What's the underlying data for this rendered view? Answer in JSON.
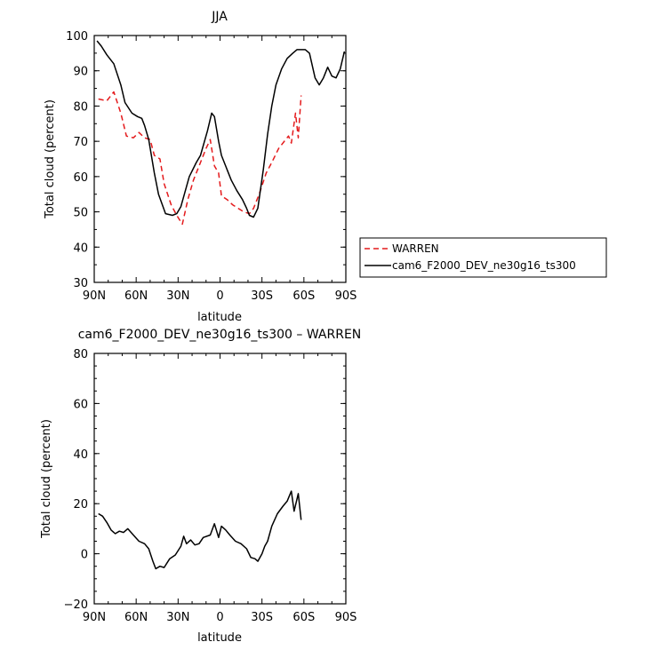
{
  "chart_data": [
    {
      "type": "line",
      "title": "JJA",
      "xlabel": "latitude",
      "ylabel": "Total cloud (percent)",
      "x_tick_labels": [
        "90N",
        "60N",
        "30N",
        "0",
        "30S",
        "60S",
        "90S"
      ],
      "x_tick_values": [
        90,
        60,
        30,
        0,
        -30,
        -60,
        -90
      ],
      "xlim": [
        90,
        -90
      ],
      "ylim": [
        30,
        100
      ],
      "y_ticks": [
        30,
        40,
        50,
        60,
        70,
        80,
        90,
        100
      ],
      "legend_position": "right",
      "series": [
        {
          "name": "WARREN",
          "color": "#e41a1c",
          "dash": "dashed",
          "points": [
            [
              87,
              82
            ],
            [
              81,
              81.5
            ],
            [
              76,
              84
            ],
            [
              71,
              78
            ],
            [
              67,
              71.5
            ],
            [
              62,
              71
            ],
            [
              58,
              72.5
            ],
            [
              54,
              71
            ],
            [
              50,
              70.5
            ],
            [
              47,
              66
            ],
            [
              43,
              65
            ],
            [
              40,
              58
            ],
            [
              35,
              52
            ],
            [
              31,
              49
            ],
            [
              27,
              46.5
            ],
            [
              23,
              53.5
            ],
            [
              19,
              59
            ],
            [
              14,
              64
            ],
            [
              10,
              68
            ],
            [
              7,
              70.5
            ],
            [
              4,
              63
            ],
            [
              1,
              61
            ],
            [
              -1,
              54.5
            ],
            [
              -5,
              53.5
            ],
            [
              -9,
              52
            ],
            [
              -13,
              51
            ],
            [
              -17,
              50
            ],
            [
              -21,
              49.5
            ],
            [
              -24,
              51
            ],
            [
              -28,
              55
            ],
            [
              -33,
              61
            ],
            [
              -37,
              64
            ],
            [
              -42,
              68
            ],
            [
              -46,
              70
            ],
            [
              -49,
              71.5
            ],
            [
              -51,
              69.5
            ],
            [
              -54,
              78
            ],
            [
              -56,
              71
            ],
            [
              -58,
              83
            ]
          ]
        },
        {
          "name": "cam6_F2000_DEV_ne30g16_ts300",
          "color": "#000000",
          "dash": "solid",
          "points": [
            [
              88,
              98.5
            ],
            [
              85,
              97
            ],
            [
              81,
              94.5
            ],
            [
              76,
              92
            ],
            [
              71,
              86
            ],
            [
              68,
              81
            ],
            [
              63,
              78
            ],
            [
              59,
              77
            ],
            [
              56,
              76.5
            ],
            [
              54,
              74.5
            ],
            [
              51,
              70.5
            ],
            [
              47,
              61
            ],
            [
              44,
              55
            ],
            [
              39,
              49.5
            ],
            [
              34,
              49
            ],
            [
              31,
              49.5
            ],
            [
              28,
              51.5
            ],
            [
              22,
              60
            ],
            [
              17,
              64
            ],
            [
              14,
              66
            ],
            [
              9,
              73
            ],
            [
              6,
              78
            ],
            [
              4,
              77
            ],
            [
              1,
              70
            ],
            [
              -1,
              66
            ],
            [
              -4,
              63
            ],
            [
              -8,
              59
            ],
            [
              -12,
              56
            ],
            [
              -16,
              53.5
            ],
            [
              -19,
              51
            ],
            [
              -21,
              49
            ],
            [
              -24,
              48.5
            ],
            [
              -27,
              51
            ],
            [
              -31,
              62
            ],
            [
              -34,
              72
            ],
            [
              -37,
              80
            ],
            [
              -40,
              86
            ],
            [
              -44,
              90.5
            ],
            [
              -48,
              93.5
            ],
            [
              -52,
              95
            ],
            [
              -55,
              96
            ],
            [
              -61,
              96
            ],
            [
              -64,
              95
            ],
            [
              -68,
              88
            ],
            [
              -71,
              86
            ],
            [
              -74,
              88
            ],
            [
              -77,
              91
            ],
            [
              -80,
              88.5
            ],
            [
              -83,
              88
            ],
            [
              -86,
              90.5
            ],
            [
              -89,
              95.5
            ]
          ]
        }
      ]
    },
    {
      "type": "line",
      "title": "cam6_F2000_DEV_ne30g16_ts300 – WARREN",
      "xlabel": "latitude",
      "ylabel": "Total cloud (percent)",
      "x_tick_labels": [
        "90N",
        "60N",
        "30N",
        "0",
        "30S",
        "60S",
        "90S"
      ],
      "x_tick_values": [
        90,
        60,
        30,
        0,
        -30,
        -60,
        -90
      ],
      "xlim": [
        90,
        -90
      ],
      "ylim": [
        -20,
        80
      ],
      "y_ticks": [
        -20,
        0,
        20,
        40,
        60,
        80
      ],
      "series": [
        {
          "color": "#000000",
          "dash": "solid",
          "points": [
            [
              87,
              16
            ],
            [
              84,
              15
            ],
            [
              81,
              12.5
            ],
            [
              78,
              9.5
            ],
            [
              75,
              8
            ],
            [
              72,
              9
            ],
            [
              69,
              8.5
            ],
            [
              66,
              10
            ],
            [
              62,
              7.5
            ],
            [
              58,
              5
            ],
            [
              54,
              4
            ],
            [
              51,
              2
            ],
            [
              48,
              -3
            ],
            [
              46,
              -6
            ],
            [
              43,
              -5
            ],
            [
              40,
              -5.5
            ],
            [
              36,
              -2
            ],
            [
              32,
              -0.5
            ],
            [
              28,
              3
            ],
            [
              26,
              7
            ],
            [
              24,
              4
            ],
            [
              21,
              5.5
            ],
            [
              18,
              3.5
            ],
            [
              15,
              4
            ],
            [
              12,
              6.5
            ],
            [
              7,
              7.5
            ],
            [
              4,
              12
            ],
            [
              1,
              6.5
            ],
            [
              -1,
              11
            ],
            [
              -4,
              9.5
            ],
            [
              -7,
              7.5
            ],
            [
              -11,
              5
            ],
            [
              -15,
              4
            ],
            [
              -19,
              2
            ],
            [
              -22,
              -1.5
            ],
            [
              -25,
              -2
            ],
            [
              -27,
              -3
            ],
            [
              -30,
              0
            ],
            [
              -32,
              3
            ],
            [
              -34,
              5
            ],
            [
              -37,
              11
            ],
            [
              -41,
              16
            ],
            [
              -45,
              19
            ],
            [
              -48,
              21
            ],
            [
              -51,
              25
            ],
            [
              -53,
              17
            ],
            [
              -56,
              24
            ],
            [
              -58,
              13.5
            ]
          ]
        }
      ]
    }
  ]
}
